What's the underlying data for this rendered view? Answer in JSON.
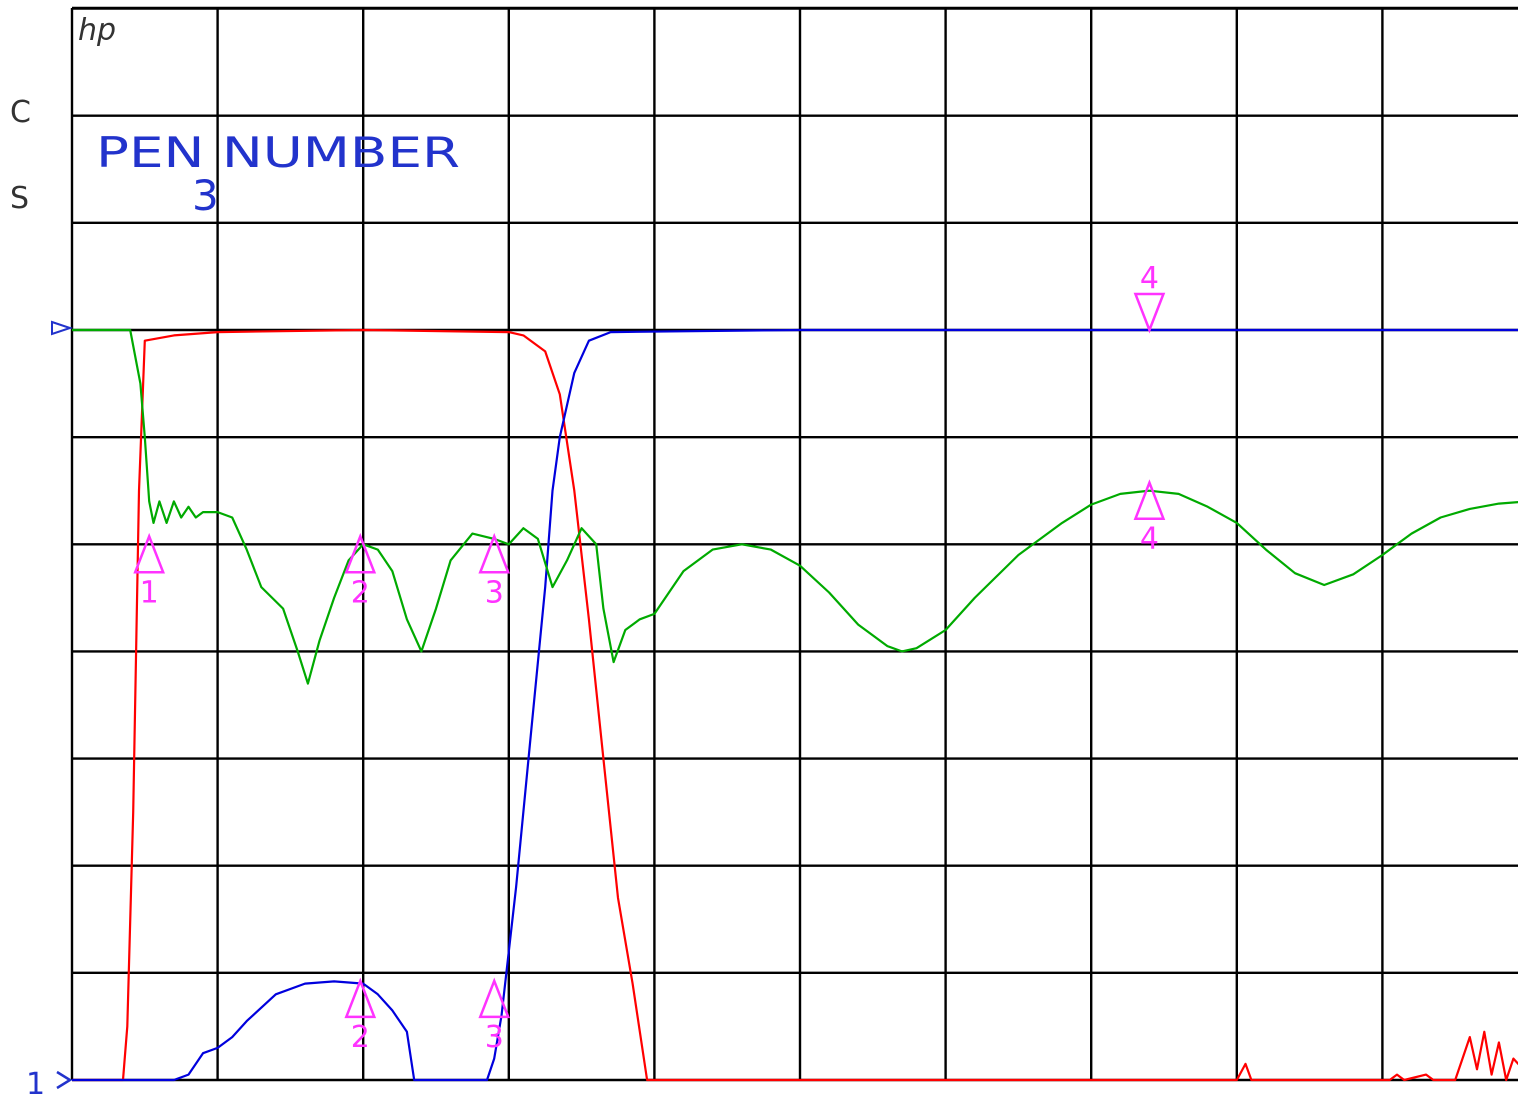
{
  "header": {
    "logo": "hp",
    "side_labels": [
      "C",
      "S"
    ],
    "pen_title": "PEN NUMBER",
    "pen_value": "3",
    "ref_marker_label": "1"
  },
  "chart_data": {
    "type": "line",
    "title": "",
    "xlabel": "",
    "ylabel": "",
    "xlim": [
      0,
      10
    ],
    "ylim": [
      0,
      7
    ],
    "grid": true,
    "x_divisions": 10,
    "y_divisions": 7,
    "series": [
      {
        "color": "#ff0000",
        "points": [
          [
            0,
            0
          ],
          [
            0.35,
            0
          ],
          [
            0.38,
            0.5
          ],
          [
            0.42,
            2.5
          ],
          [
            0.46,
            5.5
          ],
          [
            0.5,
            6.9
          ],
          [
            0.7,
            6.95
          ],
          [
            1,
            6.98
          ],
          [
            2,
            7
          ],
          [
            3,
            6.98
          ],
          [
            3.1,
            6.95
          ],
          [
            3.25,
            6.8
          ],
          [
            3.35,
            6.4
          ],
          [
            3.45,
            5.5
          ],
          [
            3.55,
            4.3
          ],
          [
            3.65,
            3
          ],
          [
            3.75,
            1.7
          ],
          [
            3.85,
            0.9
          ],
          [
            3.95,
            0
          ],
          [
            8,
            0
          ],
          [
            8.06,
            0.15
          ],
          [
            8.1,
            0
          ],
          [
            9.05,
            0
          ],
          [
            9.1,
            0.05
          ],
          [
            9.15,
            0
          ],
          [
            9.3,
            0.05
          ],
          [
            9.35,
            0
          ],
          [
            9.5,
            0
          ],
          [
            9.55,
            0.2
          ],
          [
            9.6,
            0.4
          ],
          [
            9.65,
            0.1
          ],
          [
            9.7,
            0.45
          ],
          [
            9.75,
            0.05
          ],
          [
            9.8,
            0.35
          ],
          [
            9.85,
            0
          ],
          [
            9.9,
            0.2
          ],
          [
            10,
            0.05
          ]
        ]
      },
      {
        "color": "#0000dd",
        "points": [
          [
            0,
            0
          ],
          [
            0.2,
            0
          ],
          [
            0.7,
            0
          ],
          [
            0.8,
            0.05
          ],
          [
            0.9,
            0.25
          ],
          [
            1,
            0.3
          ],
          [
            1.1,
            0.4
          ],
          [
            1.2,
            0.55
          ],
          [
            1.4,
            0.8
          ],
          [
            1.6,
            0.9
          ],
          [
            1.8,
            0.92
          ],
          [
            2,
            0.9
          ],
          [
            2.1,
            0.8
          ],
          [
            2.2,
            0.65
          ],
          [
            2.3,
            0.45
          ],
          [
            2.35,
            0
          ],
          [
            2.85,
            0
          ],
          [
            2.9,
            0.2
          ],
          [
            2.95,
            0.6
          ],
          [
            3.05,
            1.8
          ],
          [
            3.15,
            3.2
          ],
          [
            3.25,
            4.6
          ],
          [
            3.3,
            5.5
          ],
          [
            3.35,
            6
          ],
          [
            3.45,
            6.6
          ],
          [
            3.55,
            6.9
          ],
          [
            3.7,
            6.98
          ],
          [
            5,
            7
          ],
          [
            10,
            7
          ]
        ]
      },
      {
        "color": "#00aa00",
        "points": [
          [
            0,
            7
          ],
          [
            0.4,
            7
          ],
          [
            0.47,
            6.5
          ],
          [
            0.5,
            6
          ],
          [
            0.53,
            5.4
          ],
          [
            0.56,
            5.2
          ],
          [
            0.6,
            5.4
          ],
          [
            0.65,
            5.2
          ],
          [
            0.7,
            5.4
          ],
          [
            0.75,
            5.25
          ],
          [
            0.8,
            5.35
          ],
          [
            0.85,
            5.25
          ],
          [
            0.9,
            5.3
          ],
          [
            1,
            5.3
          ],
          [
            1.1,
            5.25
          ],
          [
            1.2,
            4.95
          ],
          [
            1.3,
            4.6
          ],
          [
            1.45,
            4.4
          ],
          [
            1.55,
            4
          ],
          [
            1.62,
            3.7
          ],
          [
            1.7,
            4.1
          ],
          [
            1.8,
            4.5
          ],
          [
            1.9,
            4.85
          ],
          [
            2,
            5
          ],
          [
            2.1,
            4.95
          ],
          [
            2.2,
            4.75
          ],
          [
            2.3,
            4.3
          ],
          [
            2.4,
            4
          ],
          [
            2.5,
            4.4
          ],
          [
            2.6,
            4.85
          ],
          [
            2.75,
            5.1
          ],
          [
            2.9,
            5.05
          ],
          [
            3,
            5
          ],
          [
            3.1,
            5.15
          ],
          [
            3.2,
            5.05
          ],
          [
            3.3,
            4.6
          ],
          [
            3.4,
            4.85
          ],
          [
            3.5,
            5.15
          ],
          [
            3.6,
            5
          ],
          [
            3.65,
            4.4
          ],
          [
            3.72,
            3.9
          ],
          [
            3.8,
            4.2
          ],
          [
            3.9,
            4.3
          ],
          [
            4,
            4.35
          ],
          [
            4.2,
            4.75
          ],
          [
            4.4,
            4.95
          ],
          [
            4.6,
            5
          ],
          [
            4.8,
            4.95
          ],
          [
            5,
            4.8
          ],
          [
            5.2,
            4.55
          ],
          [
            5.4,
            4.25
          ],
          [
            5.6,
            4.05
          ],
          [
            5.7,
            4
          ],
          [
            5.8,
            4.03
          ],
          [
            6,
            4.2
          ],
          [
            6.2,
            4.5
          ],
          [
            6.5,
            4.9
          ],
          [
            6.8,
            5.2
          ],
          [
            7,
            5.37
          ],
          [
            7.2,
            5.47
          ],
          [
            7.4,
            5.5
          ],
          [
            7.6,
            5.47
          ],
          [
            7.8,
            5.35
          ],
          [
            8,
            5.2
          ],
          [
            8.2,
            4.95
          ],
          [
            8.4,
            4.73
          ],
          [
            8.6,
            4.62
          ],
          [
            8.8,
            4.72
          ],
          [
            9,
            4.9
          ],
          [
            9.2,
            5.1
          ],
          [
            9.4,
            5.25
          ],
          [
            9.6,
            5.33
          ],
          [
            9.8,
            5.38
          ],
          [
            10,
            5.4
          ]
        ]
      }
    ],
    "markers": [
      {
        "label": "1",
        "x": 0.53,
        "y": 5,
        "direction": "up",
        "color": "#ff33ff"
      },
      {
        "label": "2",
        "x": 1.98,
        "y": 5,
        "direction": "up",
        "color": "#ff33ff"
      },
      {
        "label": "3",
        "x": 2.9,
        "y": 5,
        "direction": "up",
        "color": "#ff33ff"
      },
      {
        "label": "4",
        "x": 7.4,
        "y": 5.5,
        "direction": "up",
        "color": "#ff33ff"
      },
      {
        "label": "4",
        "x": 7.4,
        "y": 7,
        "direction": "down",
        "color": "#ff33ff"
      },
      {
        "label": "2",
        "x": 1.98,
        "y": 0.85,
        "direction": "up",
        "color": "#ff33ff"
      },
      {
        "label": "3",
        "x": 2.9,
        "y": 0.85,
        "direction": "up",
        "color": "#ff33ff"
      }
    ]
  }
}
